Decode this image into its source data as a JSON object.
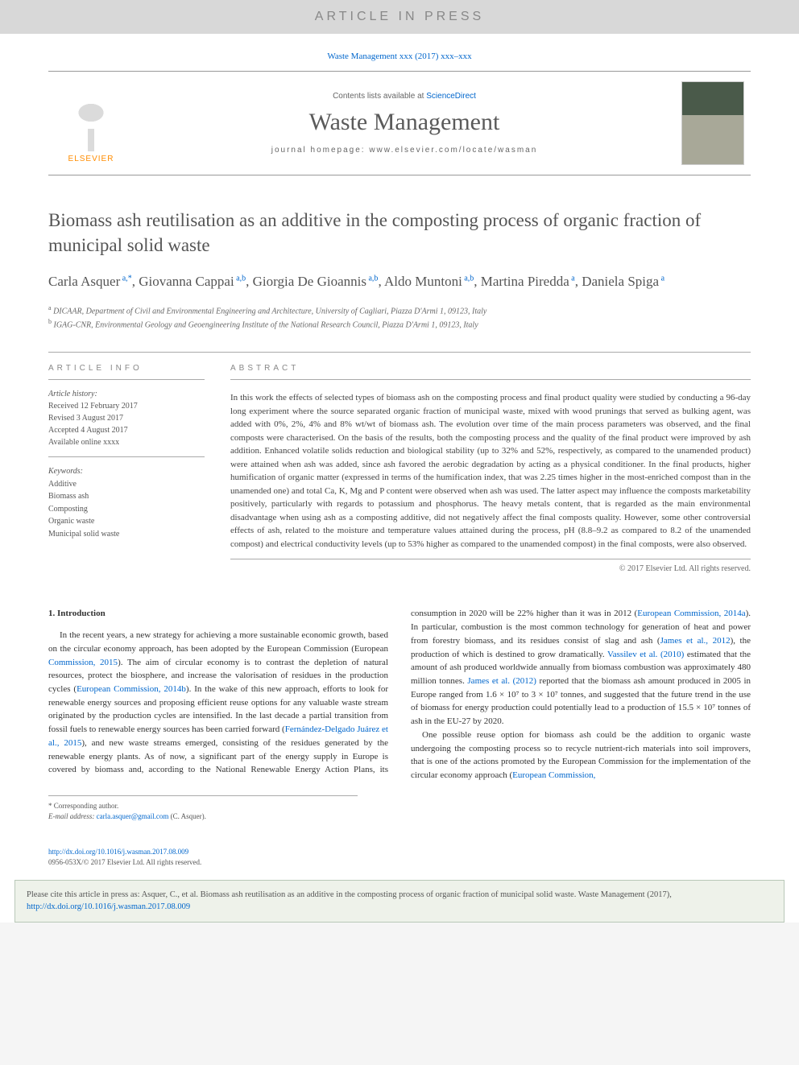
{
  "banner": "ARTICLE IN PRESS",
  "citation_header": "Waste Management xxx (2017) xxx–xxx",
  "masthead": {
    "publisher": "ELSEVIER",
    "contents_prefix": "Contents lists available at ",
    "contents_link": "ScienceDirect",
    "journal": "Waste Management",
    "homepage_label": "journal homepage: www.elsevier.com/locate/wasman"
  },
  "title": "Biomass ash reutilisation as an additive in the composting process of organic fraction of municipal solid waste",
  "authors_html": "Carla Asquer<sup>a,*</sup>, Giovanna Cappai<sup>a,b</sup>, Giorgia De Gioannis<sup>a,b</sup>, Aldo Muntoni<sup>a,b</sup>, Martina Piredda<sup>a</sup>, Daniela Spiga<sup>a</sup>",
  "affiliations": [
    "a DICAAR, Department of Civil and Environmental Engineering and Architecture, University of Cagliari, Piazza D'Armi 1, 09123, Italy",
    "b IGAG-CNR, Environmental Geology and Geoengineering Institute of the National Research Council, Piazza D'Armi 1, 09123, Italy"
  ],
  "info_label": "article info",
  "abstract_label": "abstract",
  "history": {
    "heading": "Article history:",
    "received": "Received 12 February 2017",
    "revised": "Revised 3 August 2017",
    "accepted": "Accepted 4 August 2017",
    "online": "Available online xxxx"
  },
  "keywords": {
    "heading": "Keywords:",
    "items": [
      "Additive",
      "Biomass ash",
      "Composting",
      "Organic waste",
      "Municipal solid waste"
    ]
  },
  "abstract": "In this work the effects of selected types of biomass ash on the composting process and final product quality were studied by conducting a 96-day long experiment where the source separated organic fraction of municipal waste, mixed with wood prunings that served as bulking agent, was added with 0%, 2%, 4% and 8% wt/wt of biomass ash. The evolution over time of the main process parameters was observed, and the final composts were characterised. On the basis of the results, both the composting process and the quality of the final product were improved by ash addition. Enhanced volatile solids reduction and biological stability (up to 32% and 52%, respectively, as compared to the unamended product) were attained when ash was added, since ash favored the aerobic degradation by acting as a physical conditioner. In the final products, higher humification of organic matter (expressed in terms of the humification index, that was 2.25 times higher in the most-enriched compost than in the unamended one) and total Ca, K, Mg and P content were observed when ash was used. The latter aspect may influence the composts marketability positively, particularly with regards to potassium and phosphorus. The heavy metals content, that is regarded as the main environmental disadvantage when using ash as a composting additive, did not negatively affect the final composts quality. However, some other controversial effects of ash, related to the moisture and temperature values attained during the process, pH (8.8–9.2 as compared to 8.2 of the unamended compost) and electrical conductivity levels (up to 53% higher as compared to the unamended compost) in the final composts, were also observed.",
  "abstract_copyright": "© 2017 Elsevier Ltd. All rights reserved.",
  "intro": {
    "heading": "1. Introduction",
    "p1_a": "In the recent years, a new strategy for achieving a more sustainable economic growth, based on the circular economy approach, has been adopted by the European Commission (European ",
    "p1_link1": "Commission, 2015",
    "p1_b": "). The aim of circular economy is to contrast the depletion of natural resources, protect the biosphere, and increase the valorisation of residues in the production cycles (",
    "p1_link2": "European Commission, 2014b",
    "p1_c": "). In the wake of this new approach, efforts to look for renewable energy sources and proposing efficient reuse options for any valuable waste stream originated by the production cycles are intensified. In the last decade a partial transition from fossil fuels to renewable energy sources has been carried forward (",
    "p1_link3": "Fernández-Delgado Juárez et al., 2015",
    "p1_d": "), and new waste streams emerged, consisting of the residues generated by the renewable energy plants. As of now, a significant part of the energy supply in Europe is covered by biomass and, according to the National Renewable Energy Action Plans, its consumption in 2020 will be 22% higher than it was in 2012 (",
    "p1_link4": "European Commission, 2014a",
    "p1_e": "). In particular, combustion is the most common technology for generation of heat and power from forestry biomass, and its residues consist of slag and ash (",
    "p1_link5": "James et al., 2012",
    "p1_f": "), the production of which is destined to grow dramatically. ",
    "p1_link6": "Vassilev et al. (2010)",
    "p1_g": " estimated that the amount of ash produced worldwide annually from biomass combustion was approximately 480 million tonnes. ",
    "p1_link7": "James et al. (2012)",
    "p1_h": " reported that the biomass ash amount produced in 2005 in Europe ranged from 1.6 × 10⁷ to 3 × 10⁷ tonnes, and suggested that the future trend in the use of biomass for energy production could potentially lead to a production of 15.5 × 10⁷ tonnes of ash in the EU-27 by 2020.",
    "p2_a": "One possible reuse option for biomass ash could be the addition to organic waste undergoing the composting process so to recycle nutrient-rich materials into soil improvers, that is one of the actions promoted by the European Commission for the implementation of the circular economy approach (",
    "p2_link1": "European Commission,"
  },
  "footnote": {
    "corr": "* Corresponding author.",
    "email_label": "E-mail address: ",
    "email": "carla.asquer@gmail.com",
    "email_suffix": " (C. Asquer)."
  },
  "doi": {
    "url": "http://dx.doi.org/10.1016/j.wasman.2017.08.009",
    "issn": "0956-053X/© 2017 Elsevier Ltd. All rights reserved."
  },
  "citebox": {
    "text": "Please cite this article in press as: Asquer, C., et al. Biomass ash reutilisation as an additive in the composting process of organic fraction of municipal solid waste. Waste Management (2017), ",
    "link": "http://dx.doi.org/10.1016/j.wasman.2017.08.009"
  }
}
